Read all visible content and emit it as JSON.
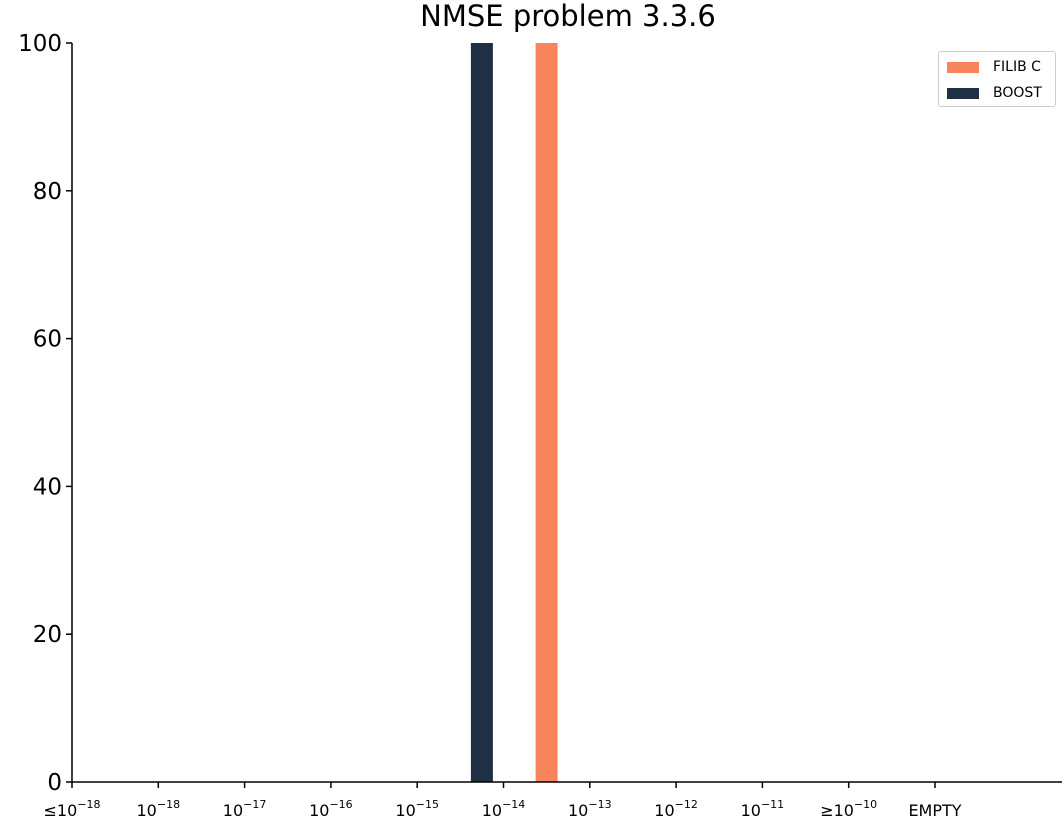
{
  "chart_data": {
    "type": "bar",
    "title": "NMSE problem 3.3.6",
    "xlabel": "",
    "ylabel": "",
    "categories": [
      "≤ 10^-18",
      "10^-18",
      "10^-17",
      "10^-16",
      "10^-15",
      "10^-14",
      "10^-13",
      "10^-12",
      "10^-11",
      "≥ 10^-10",
      "EMPTY"
    ],
    "x_tick_labels": [
      {
        "prefix": "≤",
        "base": "10",
        "exp": "−18"
      },
      {
        "prefix": "",
        "base": "10",
        "exp": "−18"
      },
      {
        "prefix": "",
        "base": "10",
        "exp": "−17"
      },
      {
        "prefix": "",
        "base": "10",
        "exp": "−16"
      },
      {
        "prefix": "",
        "base": "10",
        "exp": "−15"
      },
      {
        "prefix": "",
        "base": "10",
        "exp": "−14"
      },
      {
        "prefix": "",
        "base": "10",
        "exp": "−13"
      },
      {
        "prefix": "",
        "base": "10",
        "exp": "−12"
      },
      {
        "prefix": "",
        "base": "10",
        "exp": "−11"
      },
      {
        "prefix": "≥",
        "base": "10",
        "exp": "−10"
      },
      {
        "prefix": "",
        "base": "EMPTY",
        "exp": ""
      }
    ],
    "series": [
      {
        "name": "BOOST",
        "color": "#1f3044",
        "values": [
          0,
          0,
          0,
          0,
          0,
          100,
          0,
          0,
          0,
          0,
          0
        ],
        "bin_offset": -0.25
      },
      {
        "name": "FILIB C",
        "color": "#f7845a",
        "values": [
          0,
          0,
          0,
          0,
          0,
          0,
          100,
          0,
          0,
          0,
          0
        ],
        "bin_offset": -0.5
      }
    ],
    "legend_order": [
      "FILIB C",
      "BOOST"
    ],
    "ylim": [
      0,
      100
    ],
    "yticks": [
      0,
      20,
      40,
      60,
      80,
      100
    ],
    "grid": false,
    "legend_position": "top-right"
  }
}
